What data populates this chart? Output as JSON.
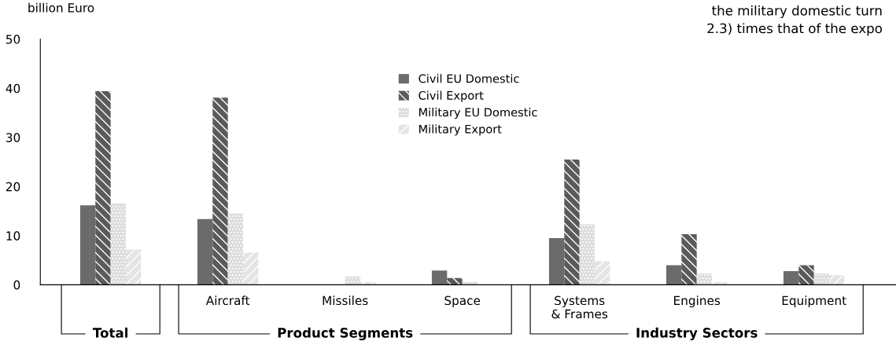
{
  "chart_data": {
    "type": "bar",
    "ylabel": "billion Euro",
    "categories": [
      null,
      "Aircraft",
      "Missiles",
      "Space",
      "Systems\n& Frames",
      "Engines",
      "Equipment"
    ],
    "series": [
      {
        "name": "Civil EU Domestic",
        "color": "#6b6b6b",
        "values": [
          16.2,
          13.4,
          0,
          2.9,
          9.5,
          4.0,
          2.8
        ]
      },
      {
        "name": "Civil Export",
        "color": "#5a5a5a",
        "values": [
          39.4,
          38.1,
          0,
          1.4,
          25.5,
          10.3,
          4.0
        ]
      },
      {
        "name": "Military EU Domestic",
        "color": "#dcdcdc",
        "values": [
          16.6,
          14.5,
          1.7,
          0.6,
          12.3,
          2.3,
          2.3
        ]
      },
      {
        "name": "Military Export",
        "color": "#e4e4e4",
        "values": [
          7.2,
          6.6,
          0.6,
          0,
          4.8,
          0.6,
          2.0
        ]
      }
    ],
    "ylim": [
      0,
      50
    ],
    "yticks": [
      0,
      10,
      20,
      30,
      40,
      50
    ],
    "grid": false,
    "legend": "top",
    "annotations": [
      "Total",
      "Product Segments",
      "Industry Sectors",
      "the military domestic turn",
      "2.3) times that of the expo"
    ]
  }
}
